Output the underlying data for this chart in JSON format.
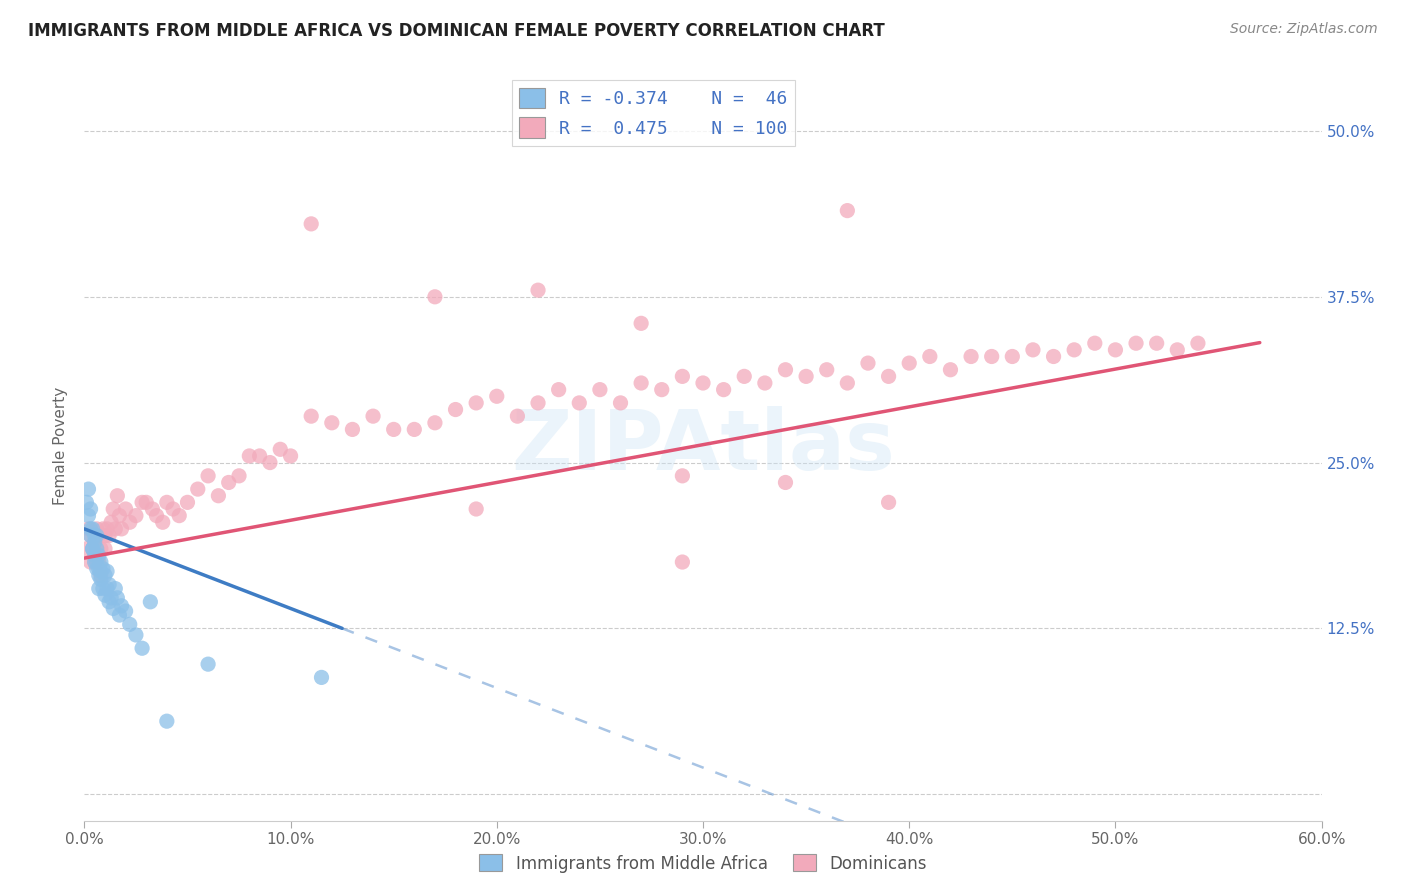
{
  "title": "IMMIGRANTS FROM MIDDLE AFRICA VS DOMINICAN FEMALE POVERTY CORRELATION CHART",
  "source": "Source: ZipAtlas.com",
  "ylabel": "Female Poverty",
  "ytick_labels": [
    "",
    "12.5%",
    "25.0%",
    "37.5%",
    "50.0%"
  ],
  "ytick_values": [
    0.0,
    0.125,
    0.25,
    0.375,
    0.5
  ],
  "xmin": 0.0,
  "xmax": 0.6,
  "ymin": -0.02,
  "ymax": 0.545,
  "legend_blue_r": "-0.374",
  "legend_blue_n": "46",
  "legend_pink_r": "0.475",
  "legend_pink_n": "100",
  "legend_label_blue": "Immigrants from Middle Africa",
  "legend_label_pink": "Dominicans",
  "blue_color": "#8BBFE8",
  "pink_color": "#F2AABB",
  "blue_line_color": "#3E7CC4",
  "pink_line_color": "#E05575",
  "blue_line_x0": 0.0,
  "blue_line_x1": 0.125,
  "blue_line_x_dash1": 0.125,
  "blue_line_x_dash2": 0.52,
  "blue_line_y_intercept": 0.2,
  "blue_line_slope": -0.6,
  "pink_line_x0": 0.0,
  "pink_line_x1": 0.57,
  "pink_line_y_intercept": 0.178,
  "pink_line_slope": 0.285,
  "blue_scatter_x": [
    0.001,
    0.002,
    0.002,
    0.003,
    0.003,
    0.003,
    0.004,
    0.004,
    0.004,
    0.005,
    0.005,
    0.005,
    0.005,
    0.006,
    0.006,
    0.006,
    0.006,
    0.007,
    0.007,
    0.007,
    0.007,
    0.008,
    0.008,
    0.008,
    0.009,
    0.009,
    0.01,
    0.01,
    0.011,
    0.011,
    0.012,
    0.012,
    0.013,
    0.014,
    0.015,
    0.016,
    0.017,
    0.018,
    0.02,
    0.022,
    0.025,
    0.028,
    0.032,
    0.04,
    0.06,
    0.115
  ],
  "blue_scatter_y": [
    0.22,
    0.23,
    0.21,
    0.195,
    0.215,
    0.2,
    0.185,
    0.2,
    0.185,
    0.19,
    0.195,
    0.175,
    0.18,
    0.185,
    0.17,
    0.195,
    0.175,
    0.165,
    0.18,
    0.17,
    0.155,
    0.168,
    0.175,
    0.162,
    0.155,
    0.17,
    0.165,
    0.15,
    0.155,
    0.168,
    0.158,
    0.145,
    0.148,
    0.14,
    0.155,
    0.148,
    0.135,
    0.142,
    0.138,
    0.128,
    0.12,
    0.11,
    0.145,
    0.055,
    0.098,
    0.088
  ],
  "pink_scatter_x": [
    0.001,
    0.002,
    0.003,
    0.003,
    0.004,
    0.005,
    0.005,
    0.006,
    0.006,
    0.007,
    0.007,
    0.008,
    0.008,
    0.009,
    0.01,
    0.01,
    0.011,
    0.012,
    0.013,
    0.014,
    0.015,
    0.016,
    0.017,
    0.018,
    0.02,
    0.022,
    0.025,
    0.028,
    0.03,
    0.033,
    0.035,
    0.038,
    0.04,
    0.043,
    0.046,
    0.05,
    0.055,
    0.06,
    0.065,
    0.07,
    0.075,
    0.08,
    0.085,
    0.09,
    0.095,
    0.1,
    0.11,
    0.12,
    0.13,
    0.14,
    0.15,
    0.16,
    0.17,
    0.18,
    0.19,
    0.2,
    0.21,
    0.22,
    0.23,
    0.24,
    0.25,
    0.26,
    0.27,
    0.28,
    0.29,
    0.3,
    0.31,
    0.32,
    0.33,
    0.34,
    0.35,
    0.36,
    0.37,
    0.38,
    0.39,
    0.4,
    0.41,
    0.42,
    0.43,
    0.44,
    0.45,
    0.46,
    0.47,
    0.48,
    0.49,
    0.5,
    0.51,
    0.52,
    0.53,
    0.54,
    0.11,
    0.17,
    0.22,
    0.27,
    0.37,
    0.29,
    0.34,
    0.29,
    0.19,
    0.39
  ],
  "pink_scatter_y": [
    0.185,
    0.2,
    0.195,
    0.175,
    0.185,
    0.19,
    0.175,
    0.2,
    0.185,
    0.195,
    0.175,
    0.185,
    0.165,
    0.2,
    0.185,
    0.195,
    0.2,
    0.195,
    0.205,
    0.215,
    0.2,
    0.225,
    0.21,
    0.2,
    0.215,
    0.205,
    0.21,
    0.22,
    0.22,
    0.215,
    0.21,
    0.205,
    0.22,
    0.215,
    0.21,
    0.22,
    0.23,
    0.24,
    0.225,
    0.235,
    0.24,
    0.255,
    0.255,
    0.25,
    0.26,
    0.255,
    0.285,
    0.28,
    0.275,
    0.285,
    0.275,
    0.275,
    0.28,
    0.29,
    0.295,
    0.3,
    0.285,
    0.295,
    0.305,
    0.295,
    0.305,
    0.295,
    0.31,
    0.305,
    0.315,
    0.31,
    0.305,
    0.315,
    0.31,
    0.32,
    0.315,
    0.32,
    0.31,
    0.325,
    0.315,
    0.325,
    0.33,
    0.32,
    0.33,
    0.33,
    0.33,
    0.335,
    0.33,
    0.335,
    0.34,
    0.335,
    0.34,
    0.34,
    0.335,
    0.34,
    0.43,
    0.375,
    0.38,
    0.355,
    0.44,
    0.175,
    0.235,
    0.24,
    0.215,
    0.22
  ]
}
